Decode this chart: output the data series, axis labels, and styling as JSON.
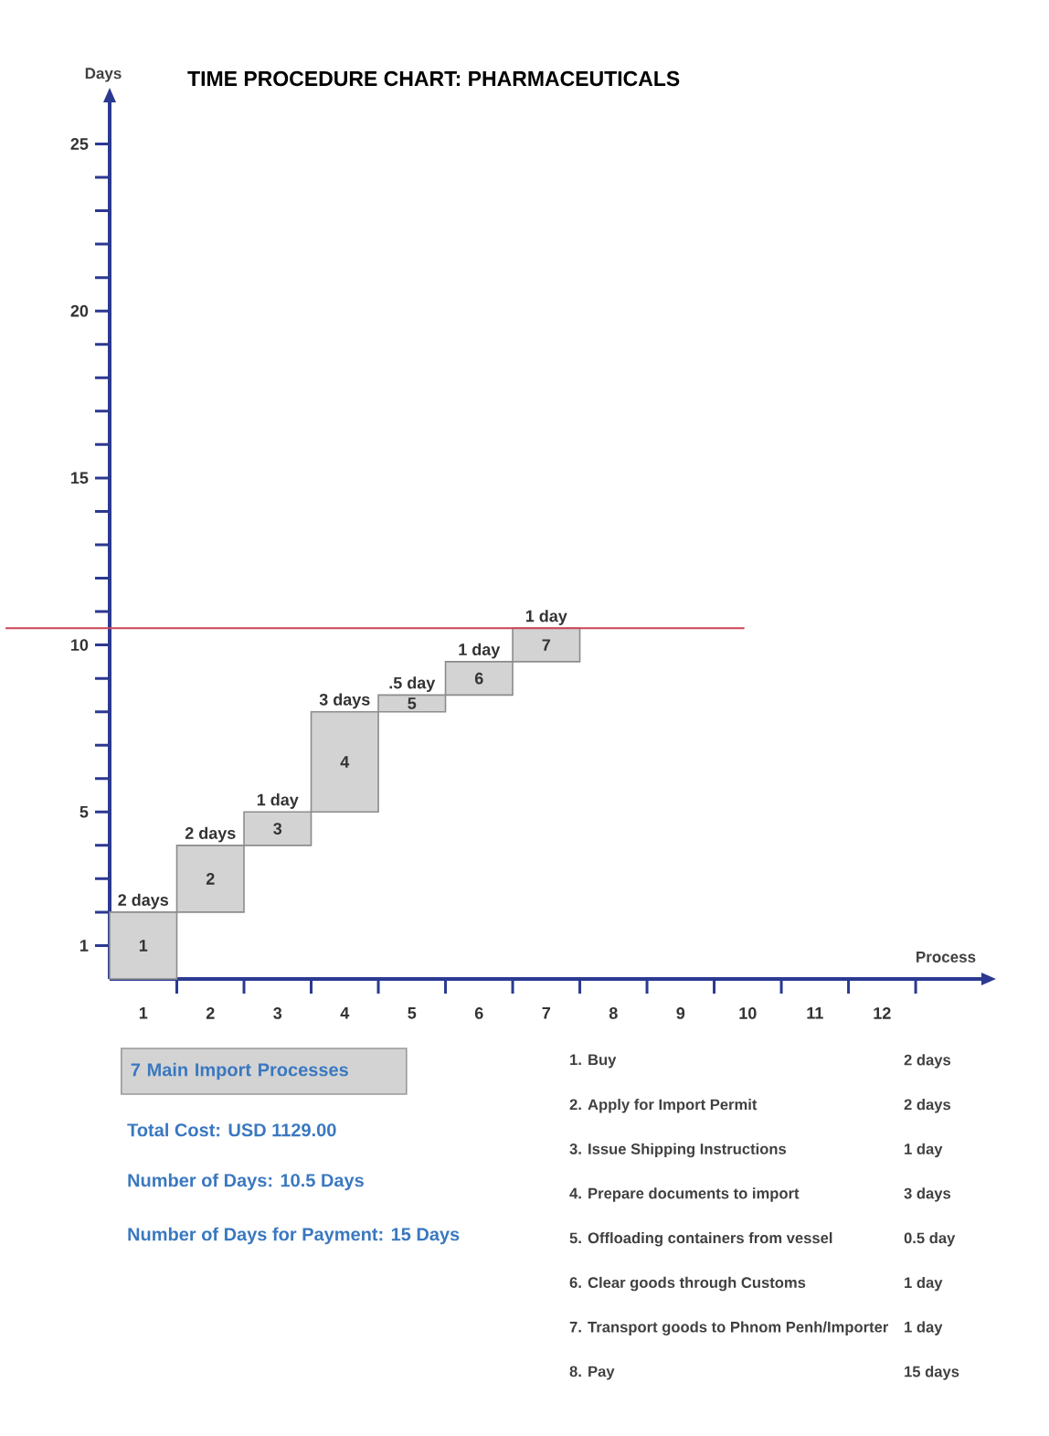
{
  "chart_data": {
    "type": "bar",
    "title": "TIME PROCEDURE CHART: PHARMACEUTICALS",
    "xlabel": "Process",
    "ylabel": "Days",
    "categories": [
      "1",
      "2",
      "3",
      "4",
      "5",
      "6",
      "7",
      "8",
      "9",
      "10",
      "11",
      "12"
    ],
    "values": [
      2,
      2,
      1,
      3,
      0.5,
      1,
      1,
      null,
      null,
      null,
      null,
      null
    ],
    "base": [
      0,
      2,
      4,
      5,
      8,
      8.5,
      9.5,
      null,
      null,
      null,
      null,
      null
    ],
    "value_labels": [
      "2 days",
      "2 days",
      "1 day",
      "3 days",
      ".5 day",
      "1 day",
      "1 day",
      null,
      null,
      null,
      null,
      null
    ],
    "color": "#d3d3d3",
    "ylim": [
      0,
      26.3
    ],
    "yticks": [
      1,
      {
        "value": 2,
        "label": null
      },
      {
        "value": 3,
        "label": null
      },
      {
        "value": 4,
        "label": null
      },
      5,
      {
        "value": 6,
        "label": null
      },
      {
        "value": 7,
        "label": null
      },
      {
        "value": 8,
        "label": null
      },
      {
        "value": 9,
        "label": null
      },
      10,
      {
        "value": 11,
        "label": null
      },
      {
        "value": 12,
        "label": null
      },
      {
        "value": 13,
        "label": null
      },
      {
        "value": 14,
        "label": null
      },
      15,
      {
        "value": 16,
        "label": null
      },
      {
        "value": 17,
        "label": null
      },
      {
        "value": 18,
        "label": null
      },
      {
        "value": 19,
        "label": null
      },
      20,
      {
        "value": 21,
        "label": null
      },
      {
        "value": 22,
        "label": null
      },
      {
        "value": 23,
        "label": null
      },
      {
        "value": 24,
        "label": null
      },
      25
    ],
    "ref_lines": [
      {
        "axis": "y",
        "value": 10.5,
        "color": "#cc4455"
      }
    ],
    "annotations": [
      "1",
      "2",
      "3",
      "4",
      "5",
      "6",
      "7",
      "7 Main Import Processes",
      "Total Cost: USD 1129.00",
      "Number of Days: 10.5 Days",
      "Number of Days for Payment: 15 Days",
      "1. Buy",
      "2 days",
      "2. Apply for Import Permit",
      "2 days",
      "3. Issue Shipping Instructions",
      "1 day",
      "4. Prepare documents to import",
      "3 days",
      "5. Offloading containers from vessel",
      "0.5 day",
      "6. Clear goods through Customs",
      "1 day",
      "7. Transport goods to Phnom Penh/Importer",
      "1 day",
      "8. Pay",
      "15 days"
    ]
  }
}
